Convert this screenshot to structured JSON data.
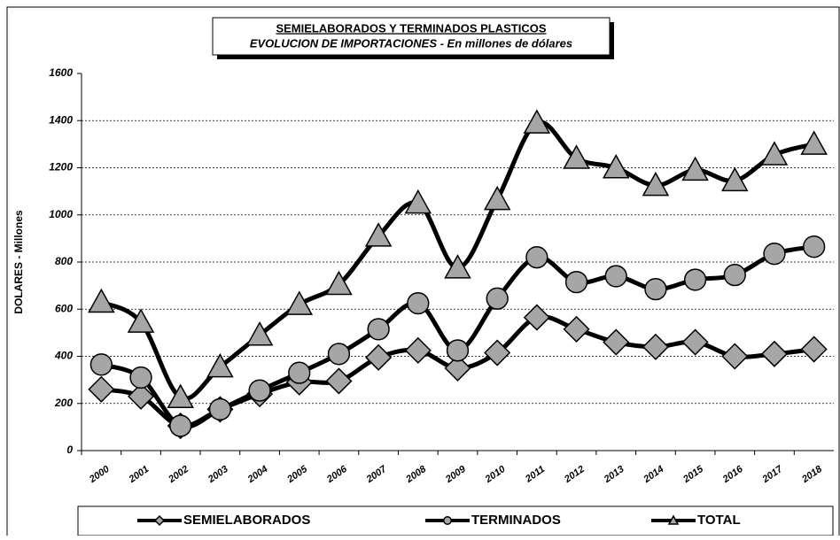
{
  "chart_data": {
    "type": "line",
    "title": "SEMIELABORADOS Y TERMINADOS PLASTICOS",
    "subtitle": "EVOLUCION DE IMPORTACIONES - En millones de dólares",
    "y_label": "DOLARES - Millones",
    "categories": [
      "2000",
      "2001",
      "2002",
      "2003",
      "2004",
      "2005",
      "2006",
      "2007",
      "2008",
      "2009",
      "2010",
      "2011",
      "2012",
      "2013",
      "2014",
      "2015",
      "2016",
      "2017",
      "2018"
    ],
    "series": [
      {
        "name": "SEMIELABORADOS",
        "color": "#000000",
        "marker": "diamond",
        "marker_color": "#a6a6a6",
        "values": [
          260,
          230,
          105,
          175,
          240,
          290,
          295,
          395,
          425,
          350,
          415,
          565,
          515,
          460,
          440,
          460,
          400,
          410,
          430
        ]
      },
      {
        "name": "TERMINADOS",
        "color": "#000000",
        "marker": "circle",
        "marker_color": "#a6a6a6",
        "values": [
          365,
          310,
          105,
          175,
          255,
          330,
          410,
          515,
          625,
          425,
          645,
          820,
          715,
          740,
          685,
          725,
          745,
          835,
          865
        ]
      },
      {
        "name": "TOTAL",
        "color": "#000000",
        "marker": "triangle",
        "marker_color": "#a6a6a6",
        "values": [
          630,
          545,
          225,
          355,
          490,
          620,
          705,
          910,
          1050,
          775,
          1065,
          1390,
          1240,
          1200,
          1125,
          1190,
          1145,
          1255,
          1300
        ]
      }
    ],
    "ylim": [
      0,
      1600
    ],
    "yticks": [
      0,
      200,
      400,
      600,
      800,
      1000,
      1200,
      1400,
      1600
    ],
    "grid": true,
    "legend": "bottom"
  }
}
